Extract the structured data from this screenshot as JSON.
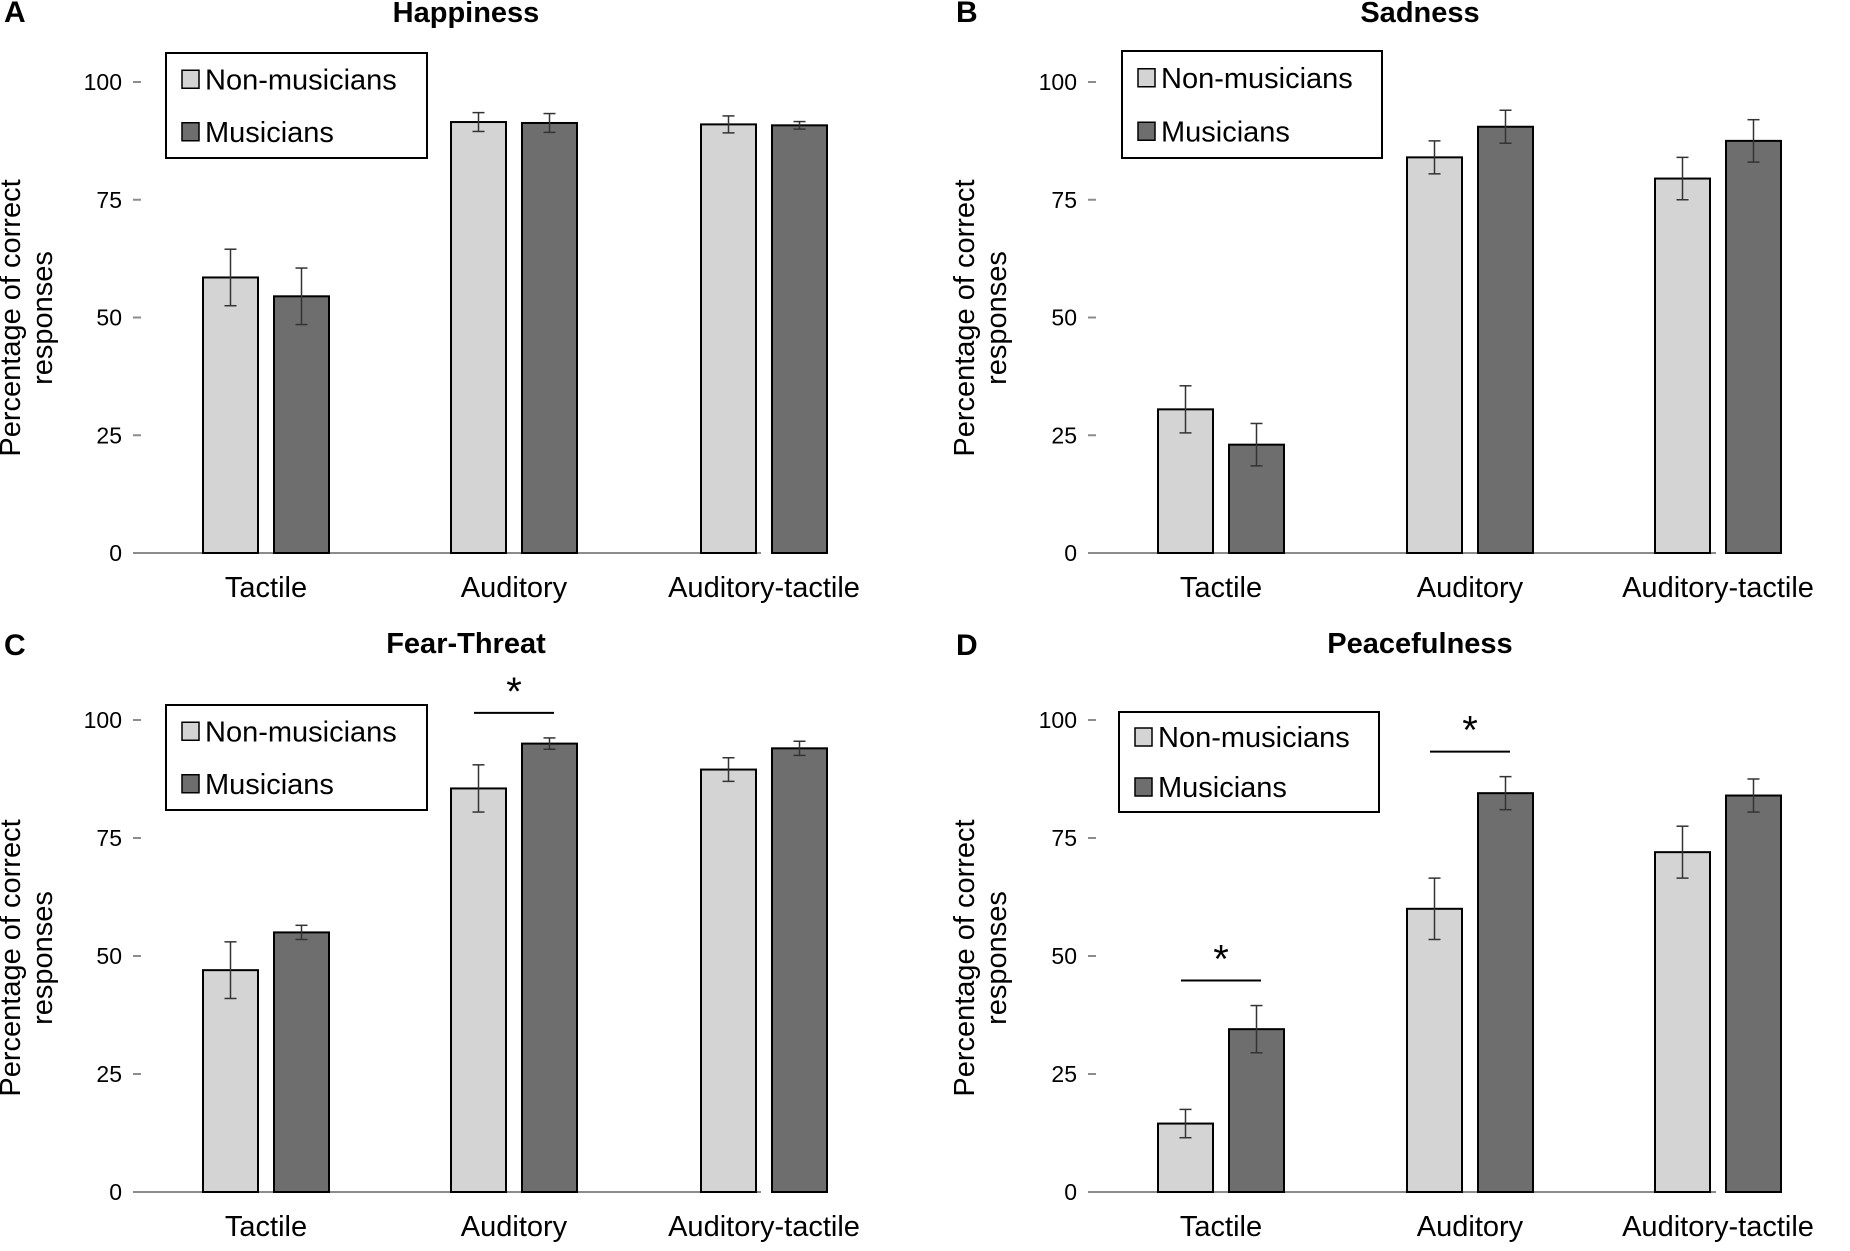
{
  "chart_data": [
    {
      "panel": "A",
      "type": "bar",
      "title": "Happiness",
      "categories": [
        "Tactile",
        "Auditory",
        "Auditory-tactile"
      ],
      "series": [
        {
          "name": "Non-musicians",
          "color": "#d4d4d4",
          "values": [
            58.5,
            91.5,
            91.0
          ],
          "errors": [
            6.0,
            2.0,
            1.8
          ]
        },
        {
          "name": "Musicians",
          "color": "#6e6e6e",
          "values": [
            54.5,
            91.3,
            90.8
          ],
          "errors": [
            6.0,
            2.0,
            0.8
          ]
        }
      ],
      "ylabel": "Percentage of correct responses",
      "ylim": [
        0,
        100
      ],
      "yticks": [
        0,
        25,
        50,
        75,
        100
      ],
      "legend": "top-left",
      "significance": []
    },
    {
      "panel": "B",
      "type": "bar",
      "title": "Sadness",
      "categories": [
        "Tactile",
        "Auditory",
        "Auditory-tactile"
      ],
      "series": [
        {
          "name": "Non-musicians",
          "color": "#d4d4d4",
          "values": [
            30.5,
            84.0,
            79.5
          ],
          "errors": [
            5.0,
            3.5,
            4.5
          ]
        },
        {
          "name": "Musicians",
          "color": "#6e6e6e",
          "values": [
            23.0,
            90.5,
            87.5
          ],
          "errors": [
            4.5,
            3.5,
            4.5
          ]
        }
      ],
      "ylabel": "Percentage of correct responses",
      "ylim": [
        0,
        100
      ],
      "yticks": [
        0,
        25,
        50,
        75,
        100
      ],
      "legend": "top-left",
      "significance": []
    },
    {
      "panel": "C",
      "type": "bar",
      "title": "Fear-Threat",
      "categories": [
        "Tactile",
        "Auditory",
        "Auditory-tactile"
      ],
      "series": [
        {
          "name": "Non-musicians",
          "color": "#d4d4d4",
          "values": [
            47.0,
            85.5,
            89.5
          ],
          "errors": [
            6.0,
            5.0,
            2.5
          ]
        },
        {
          "name": "Musicians",
          "color": "#6e6e6e",
          "values": [
            55.0,
            95.0,
            94.0
          ],
          "errors": [
            1.5,
            1.2,
            1.5
          ]
        }
      ],
      "ylabel": "Percentage of correct responses",
      "ylim": [
        0,
        100
      ],
      "yticks": [
        0,
        25,
        50,
        75,
        100
      ],
      "legend": "top-left",
      "significance": [
        {
          "category": "Auditory",
          "label": "*"
        }
      ]
    },
    {
      "panel": "D",
      "type": "bar",
      "title": "Peacefulness",
      "categories": [
        "Tactile",
        "Auditory",
        "Auditory-tactile"
      ],
      "series": [
        {
          "name": "Non-musicians",
          "color": "#d4d4d4",
          "values": [
            14.5,
            60.0,
            72.0
          ],
          "errors": [
            3.0,
            6.5,
            5.5
          ]
        },
        {
          "name": "Musicians",
          "color": "#6e6e6e",
          "values": [
            34.5,
            84.5,
            84.0
          ],
          "errors": [
            5.0,
            3.5,
            3.5
          ]
        }
      ],
      "ylabel": "Percentage of correct responses",
      "ylim": [
        0,
        100
      ],
      "yticks": [
        0,
        25,
        50,
        75,
        100
      ],
      "legend": "top-left",
      "significance": [
        {
          "category": "Tactile",
          "label": "*"
        },
        {
          "category": "Auditory",
          "label": "*"
        }
      ]
    }
  ]
}
